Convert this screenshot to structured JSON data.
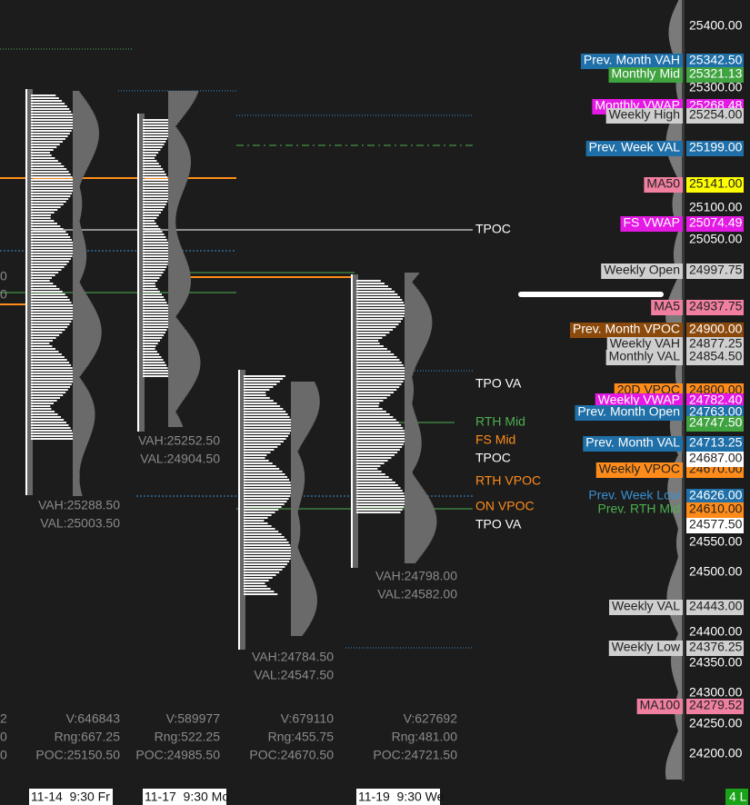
{
  "price_axis": {
    "ticks": [
      "25400.00",
      "25300.00",
      "25100.00",
      "25050.00",
      "24550.00",
      "24500.00",
      "24400.00",
      "24350.00",
      "24300.00",
      "24250.00",
      "24200.00"
    ]
  },
  "level_tags": [
    {
      "label": "Prev. Month VAH",
      "price": "25342.50"
    },
    {
      "label": "Monthly Mid",
      "price": "25321.13"
    },
    {
      "label": "Monthly VWAP",
      "price": "25268.48"
    },
    {
      "label": "Weekly High",
      "price": "25254.00"
    },
    {
      "label": "Prev. Week VAL",
      "price": "25199.00"
    },
    {
      "label": "MA50",
      "price": "25141.00"
    },
    {
      "label": "FS VWAP",
      "price": "25074.49"
    },
    {
      "label": "Weekly Open",
      "price": "24997.75"
    },
    {
      "label": "MA5",
      "price": "24937.75"
    },
    {
      "label": "Prev. Month VPOC",
      "price": "24900.00"
    },
    {
      "label": "Weekly VAH",
      "price": "24877.25"
    },
    {
      "label": "Monthly VAL",
      "price": "24854.50"
    },
    {
      "label": "20D VPOC",
      "price": "24800.00"
    },
    {
      "label": "Weekly VWAP",
      "price": "24782.40"
    },
    {
      "label": "Prev. Month Open",
      "price": "24763.00"
    },
    {
      "label": "Prev. Month VAL",
      "price": "24713.25"
    },
    {
      "label": "Weekly VPOC",
      "price": "24670.00"
    },
    {
      "label": "Prev. Week Low",
      "price": "24626.00"
    },
    {
      "label": "Prev. RTH Mid",
      "price": "24610.00"
    },
    {
      "label": "Weekly VAL",
      "price": "24443.00"
    },
    {
      "label": "Weekly Low",
      "price": "24376.25"
    },
    {
      "label": "MA100",
      "price": "24279.52"
    }
  ],
  "extra_prices": [
    "24747.50",
    "24687.00",
    "24577.50"
  ],
  "profile_labels": [
    "TPOC",
    "TPO VA",
    "RTH Mid",
    "FS Mid",
    "TPOC",
    "RTH VPOC",
    "ON VPOC",
    "TPO VA"
  ],
  "sessions": [
    {
      "vah": "VAH:25288.50",
      "val": "VAL:25003.50",
      "volume": "V:646843",
      "range": "Rng:667.25",
      "poc": "POC:25150.50",
      "date": "11-14  9:30 Fr"
    },
    {
      "vah": "VAH:25252.50",
      "val": "VAL:24904.50",
      "volume": "V:589977",
      "range": "Rng:522.25",
      "poc": "POC:24985.50",
      "date": "11-17  9:30 Mo"
    },
    {
      "vah": "VAH:24784.50",
      "val": "VAL:24547.50",
      "volume": "V:679110",
      "range": "Rng:455.75",
      "poc": "POC:24670.50"
    },
    {
      "vah": "VAH:24798.00",
      "val": "VAL:24582.00",
      "volume": "V:627692",
      "range": "Rng:481.00",
      "poc": "POC:24721.50",
      "date": "11-19  9:30 We"
    }
  ],
  "left_fragments": [
    "0",
    "0",
    "2",
    "0",
    "0"
  ],
  "status": "4 L"
}
